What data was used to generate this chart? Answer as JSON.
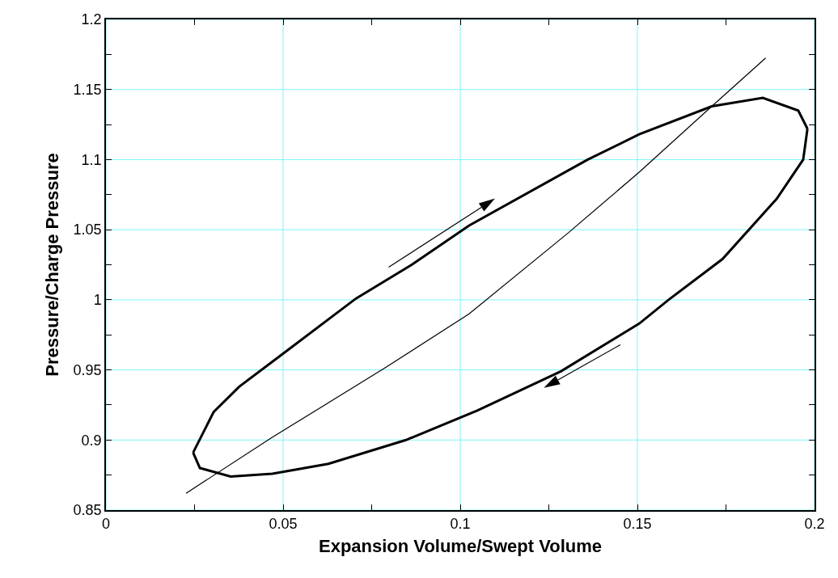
{
  "chart_data": {
    "type": "line",
    "xlabel": "Expansion Volume/Swept Volume",
    "ylabel": "Pressure/Charge Pressure",
    "xlim": [
      0,
      0.2
    ],
    "ylim": [
      0.85,
      1.2
    ],
    "xticks": [
      0,
      {
        "value": 0.025,
        "label": null
      },
      0.05,
      {
        "value": 0.075,
        "label": null
      },
      0.1,
      {
        "value": 0.125,
        "label": null
      },
      0.15,
      {
        "value": 0.175,
        "label": null
      },
      0.2
    ],
    "yticks": [
      0.85,
      {
        "value": 0.875,
        "label": null
      },
      0.9,
      {
        "value": 0.925,
        "label": null
      },
      0.95,
      {
        "value": 0.975,
        "label": null
      },
      1,
      {
        "value": 1.025,
        "label": null
      },
      1.05,
      {
        "value": 1.075,
        "label": null
      },
      1.1,
      {
        "value": 1.125,
        "label": null
      },
      1.15,
      {
        "value": 1.175,
        "label": null
      },
      1.2
    ],
    "grid": true,
    "marker": "none",
    "line_style": "solid",
    "series": [
      {
        "color": "#000000",
        "x": [
          0.0246,
          0.0304,
          0.0376,
          0.0502,
          0.0706,
          0.0863,
          0.1025,
          0.136,
          0.1505,
          0.171,
          0.1854,
          0.1954,
          0.198
        ],
        "values": [
          0.891,
          0.92,
          0.938,
          0.962,
          1.001,
          1.025,
          1.053,
          1.1,
          1.118,
          1.138,
          1.144,
          1.135,
          1.122
        ]
      },
      {
        "color": "#000000",
        "x": [
          0.0246,
          0.0265,
          0.0352,
          0.047,
          0.0628,
          0.0847,
          0.1048,
          0.1284,
          0.1505,
          0.1588,
          0.174,
          0.1893,
          0.1968,
          0.198
        ],
        "values": [
          0.891,
          0.88,
          0.874,
          0.876,
          0.883,
          0.9,
          0.921,
          0.949,
          0.983,
          1.0,
          1.029,
          1.072,
          1.1,
          1.122
        ]
      },
      {
        "color": "#000000",
        "x": [
          0.0226,
          0.047,
          0.0785,
          0.1025,
          0.1306,
          0.1505,
          0.171,
          0.1862
        ],
        "values": [
          0.862,
          0.902,
          0.951,
          0.99,
          1.048,
          1.091,
          1.138,
          1.1725
        ]
      }
    ]
  }
}
